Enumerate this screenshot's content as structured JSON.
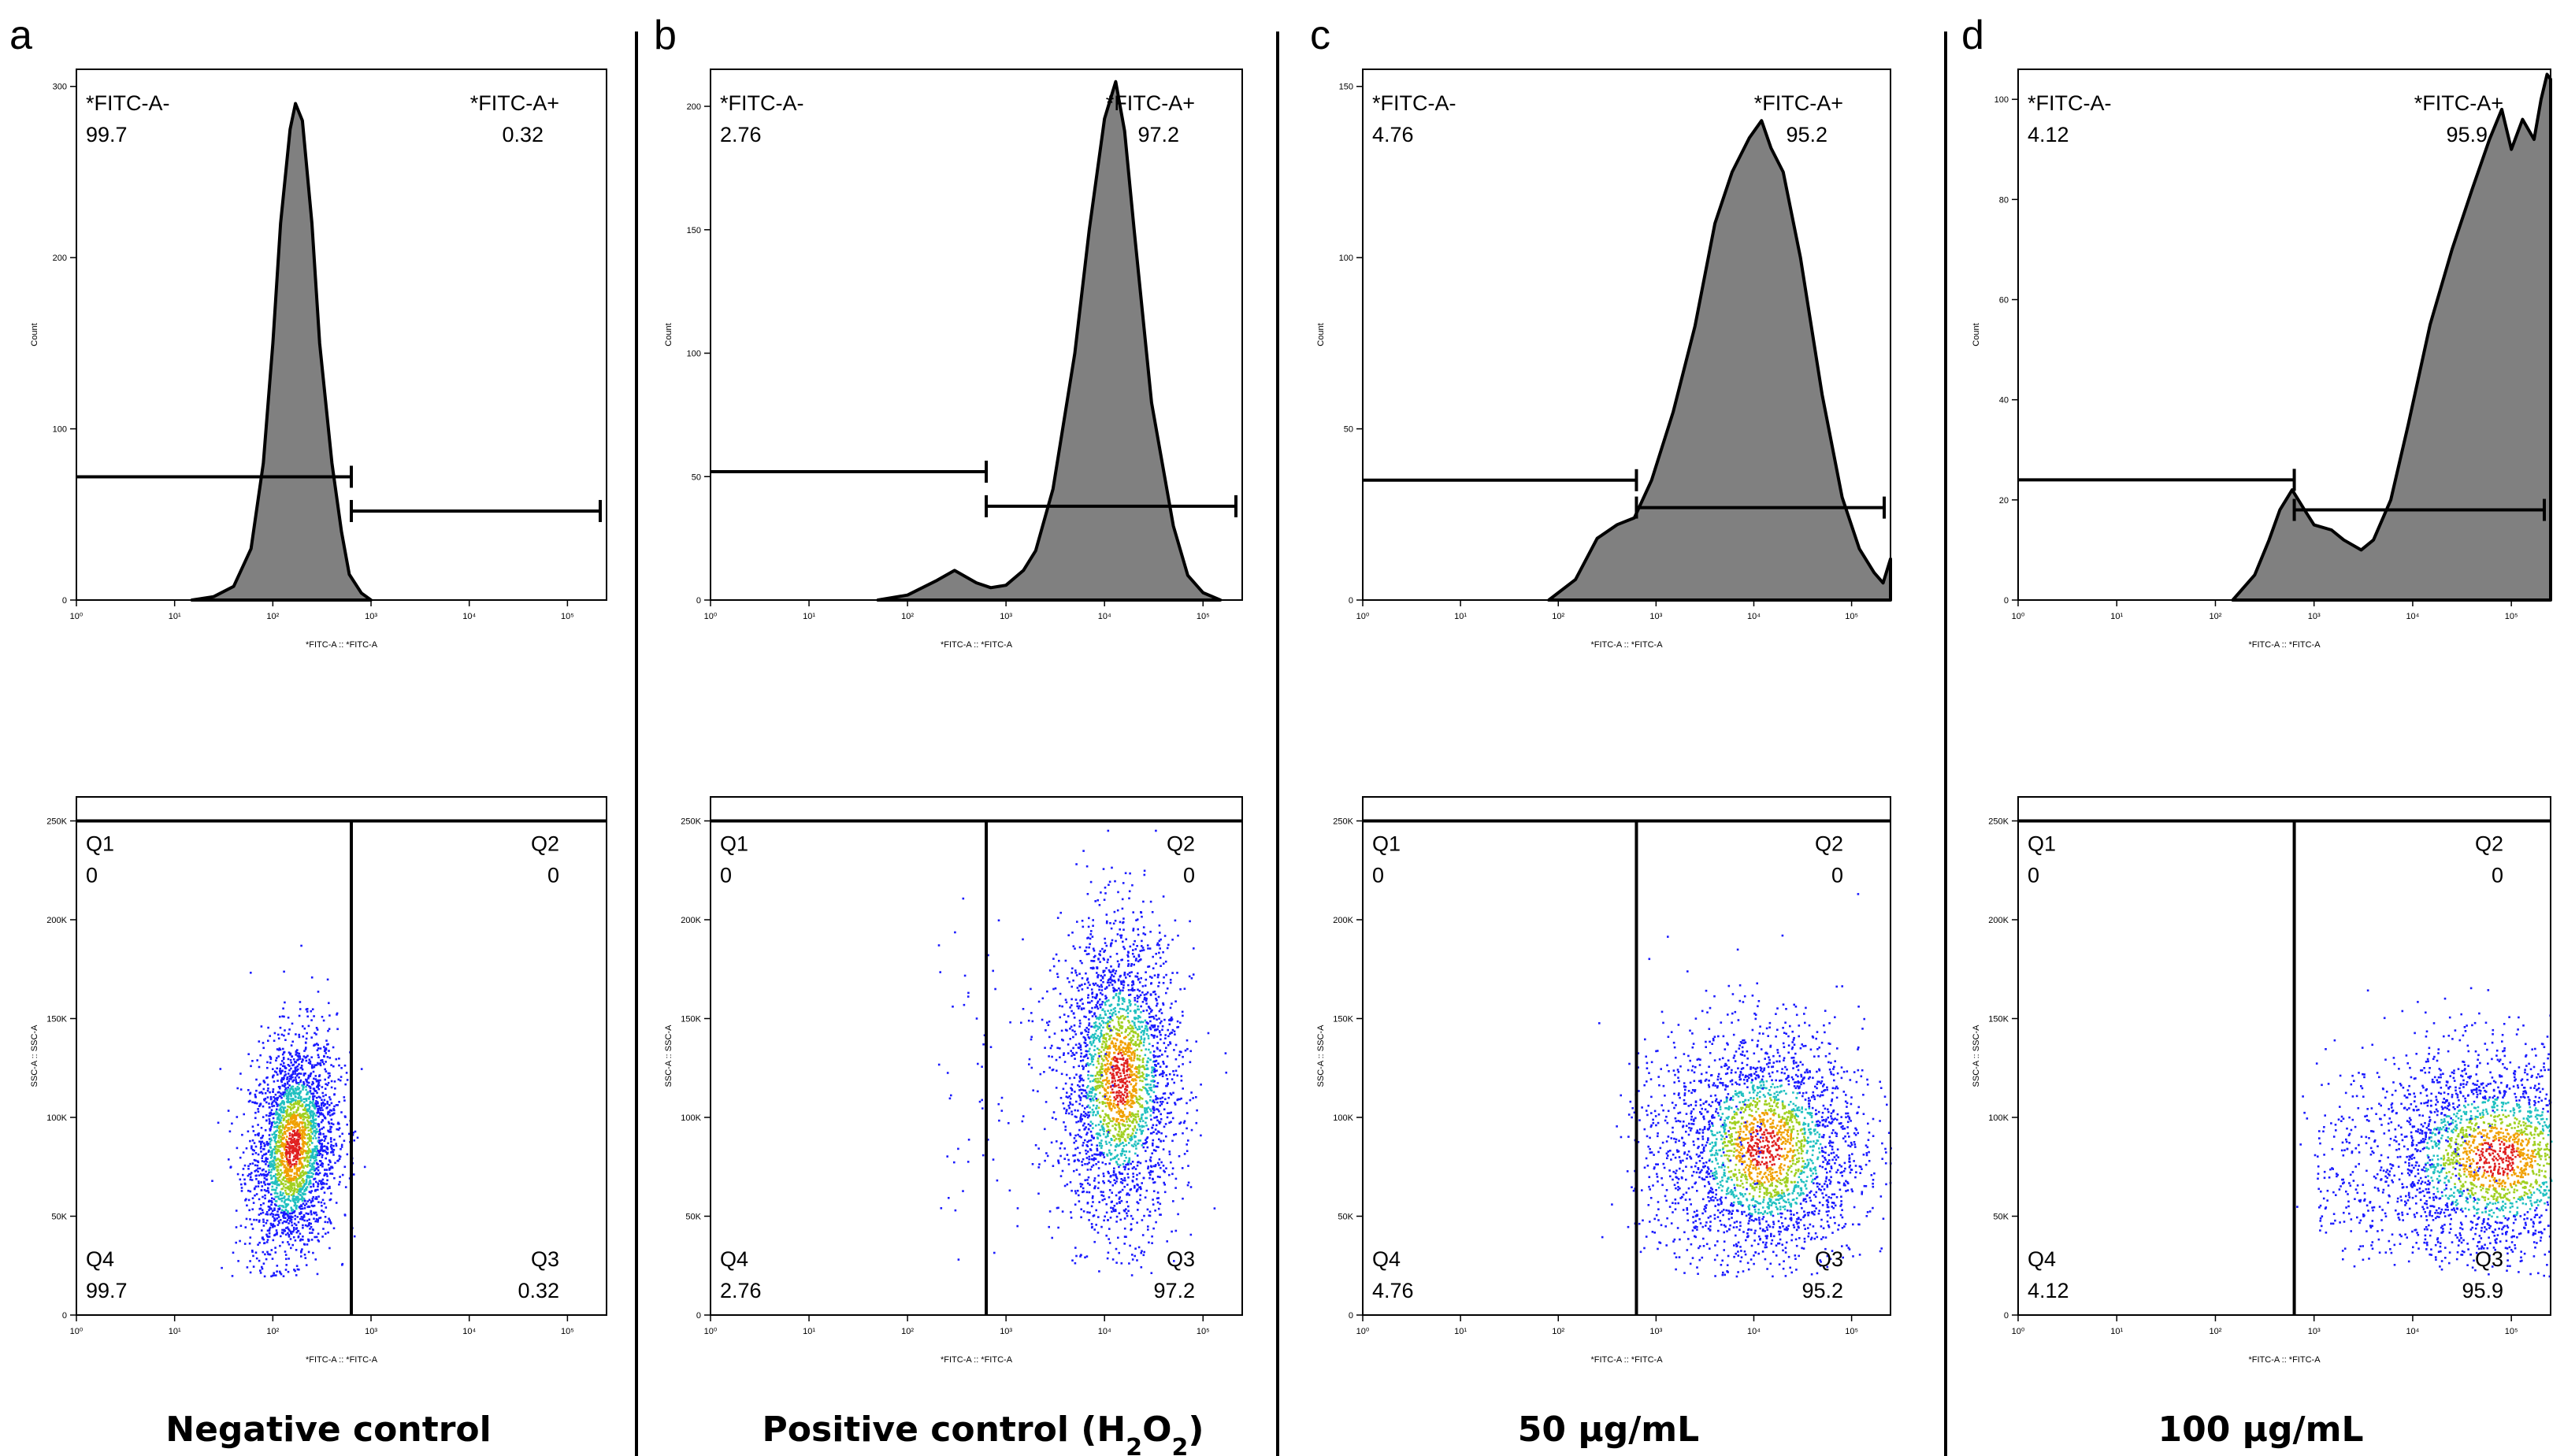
{
  "chart_data": [
    {
      "panel": "a",
      "condition": "Negative control",
      "histogram": {
        "type": "area",
        "xlabel": "*FITC-A :: *FITC-A",
        "ylabel": "Count",
        "xscale": "log",
        "xlim": [
          1,
          250000
        ],
        "ylim": [
          0,
          310
        ],
        "yticks": [
          0,
          100,
          200,
          300
        ],
        "x": [
          15,
          25,
          40,
          60,
          80,
          100,
          120,
          150,
          170,
          200,
          250,
          300,
          400,
          500,
          600,
          800,
          1000
        ],
        "y": [
          0,
          2,
          8,
          30,
          80,
          150,
          220,
          275,
          290,
          280,
          220,
          150,
          80,
          40,
          15,
          4,
          0
        ],
        "gates": [
          {
            "name": "*FITC-A-",
            "value": "99.7",
            "range": [
              1,
              630
            ],
            "level": 72
          },
          {
            "name": "*FITC-A+",
            "value": "0.32",
            "range": [
              630,
              250000
            ],
            "level": 52
          }
        ]
      },
      "scatter": {
        "type": "scatter",
        "xlabel": "*FITC-A :: *FITC-A",
        "ylabel": "SSC-A :: SSC-A",
        "xscale": "log",
        "xlim": [
          1,
          250000
        ],
        "ylim": [
          0,
          262144
        ],
        "yticks": [
          0,
          50000,
          100000,
          150000,
          200000,
          250000
        ],
        "threshold_x": 630,
        "threshold_y": 250000,
        "quadrants": [
          {
            "name": "Q1",
            "value": "0"
          },
          {
            "name": "Q2",
            "value": "0"
          },
          {
            "name": "Q3",
            "value": "0.32"
          },
          {
            "name": "Q4",
            "value": "99.7"
          }
        ]
      }
    },
    {
      "panel": "b",
      "condition": "Positive control (H2O2)",
      "histogram": {
        "type": "area",
        "xlabel": "*FITC-A :: *FITC-A",
        "ylabel": "Count",
        "xscale": "log",
        "xlim": [
          1,
          250000
        ],
        "ylim": [
          0,
          215
        ],
        "yticks": [
          0,
          50,
          100,
          150,
          200
        ],
        "x": [
          50,
          100,
          200,
          300,
          500,
          700,
          1000,
          1500,
          2000,
          3000,
          5000,
          7000,
          10000,
          13000,
          16000,
          20000,
          30000,
          50000,
          70000,
          100000,
          150000
        ],
        "y": [
          0,
          2,
          8,
          12,
          7,
          5,
          6,
          12,
          20,
          45,
          100,
          150,
          195,
          210,
          190,
          150,
          80,
          30,
          10,
          3,
          0
        ],
        "gates": [
          {
            "name": "*FITC-A-",
            "value": "2.76",
            "range": [
              1,
              630
            ],
            "level": 52
          },
          {
            "name": "*FITC-A+",
            "value": "97.2",
            "range": [
              630,
              250000
            ],
            "level": 38
          }
        ]
      },
      "scatter": {
        "type": "scatter",
        "xlabel": "*FITC-A :: *FITC-A",
        "ylabel": "SSC-A :: SSC-A",
        "xscale": "log",
        "xlim": [
          1,
          250000
        ],
        "ylim": [
          0,
          262144
        ],
        "yticks": [
          0,
          50000,
          100000,
          150000,
          200000,
          250000
        ],
        "threshold_x": 630,
        "threshold_y": 250000,
        "quadrants": [
          {
            "name": "Q1",
            "value": "0"
          },
          {
            "name": "Q2",
            "value": "0"
          },
          {
            "name": "Q3",
            "value": "97.2"
          },
          {
            "name": "Q4",
            "value": "2.76"
          }
        ]
      }
    },
    {
      "panel": "c",
      "condition": "50 μg/mL",
      "histogram": {
        "type": "area",
        "xlabel": "*FITC-A :: *FITC-A",
        "ylabel": "Count",
        "xscale": "log",
        "xlim": [
          1,
          250000
        ],
        "ylim": [
          0,
          155
        ],
        "yticks": [
          0,
          50,
          100,
          150
        ],
        "x": [
          80,
          150,
          250,
          400,
          600,
          900,
          1500,
          2500,
          4000,
          6000,
          9000,
          12000,
          15000,
          20000,
          30000,
          50000,
          80000,
          120000,
          170000,
          210000,
          250000
        ],
        "y": [
          0,
          6,
          18,
          22,
          24,
          35,
          55,
          80,
          110,
          125,
          135,
          140,
          132,
          125,
          100,
          60,
          30,
          15,
          8,
          5,
          12
        ],
        "gates": [
          {
            "name": "*FITC-A-",
            "value": "4.76",
            "range": [
              1,
              630
            ],
            "level": 35
          },
          {
            "name": "*FITC-A+",
            "value": "95.2",
            "range": [
              630,
              250000
            ],
            "level": 27
          }
        ]
      },
      "scatter": {
        "type": "scatter",
        "xlabel": "*FITC-A :: *FITC-A",
        "ylabel": "SSC-A :: SSC-A",
        "xscale": "log",
        "xlim": [
          1,
          250000
        ],
        "ylim": [
          0,
          262144
        ],
        "yticks": [
          0,
          50000,
          100000,
          150000,
          200000,
          250000
        ],
        "threshold_x": 630,
        "threshold_y": 250000,
        "quadrants": [
          {
            "name": "Q1",
            "value": "0"
          },
          {
            "name": "Q2",
            "value": "0"
          },
          {
            "name": "Q3",
            "value": "95.2"
          },
          {
            "name": "Q4",
            "value": "4.76"
          }
        ]
      }
    },
    {
      "panel": "d",
      "condition": "100 μg/mL",
      "histogram": {
        "type": "area",
        "xlabel": "*FITC-A :: *FITC-A",
        "ylabel": "Count",
        "xscale": "log",
        "xlim": [
          1,
          250000
        ],
        "ylim": [
          0,
          106
        ],
        "yticks": [
          0,
          20,
          40,
          60,
          80,
          100
        ],
        "x": [
          150,
          250,
          350,
          450,
          600,
          800,
          1000,
          1500,
          2000,
          3000,
          4000,
          6000,
          9000,
          15000,
          25000,
          40000,
          60000,
          80000,
          100000,
          130000,
          170000,
          200000,
          230000,
          250000
        ],
        "y": [
          0,
          5,
          12,
          18,
          22,
          18,
          15,
          14,
          12,
          10,
          12,
          20,
          35,
          55,
          70,
          82,
          92,
          98,
          90,
          96,
          92,
          100,
          105,
          104
        ],
        "gates": [
          {
            "name": "*FITC-A-",
            "value": "4.12",
            "range": [
              1,
              630
            ],
            "level": 24
          },
          {
            "name": "*FITC-A+",
            "value": "95.9",
            "range": [
              630,
              250000
            ],
            "level": 18
          }
        ]
      },
      "scatter": {
        "type": "scatter",
        "xlabel": "*FITC-A :: *FITC-A",
        "ylabel": "SSC-A :: SSC-A",
        "xscale": "log",
        "xlim": [
          1,
          250000
        ],
        "ylim": [
          0,
          262144
        ],
        "yticks": [
          0,
          50000,
          100000,
          150000,
          200000,
          250000
        ],
        "threshold_x": 630,
        "threshold_y": 250000,
        "quadrants": [
          {
            "name": "Q1",
            "value": "0"
          },
          {
            "name": "Q2",
            "value": "0"
          },
          {
            "name": "Q3",
            "value": "95.9"
          },
          {
            "name": "Q4",
            "value": "4.12"
          }
        ]
      }
    }
  ]
}
